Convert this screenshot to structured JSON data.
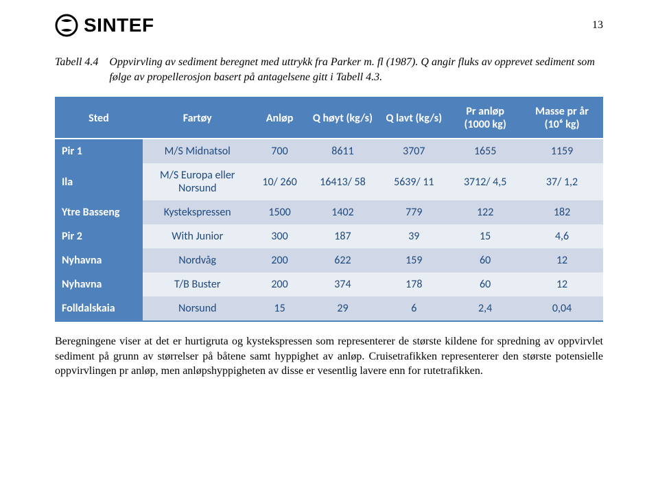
{
  "page": {
    "number": "13",
    "logo_text": "SINTEF"
  },
  "caption": {
    "label": "Tabell 4.4",
    "text": "Oppvirvling av sediment beregnet med uttrykk fra Parker m. fl (1987). Q angir fluks av opprevet sediment som følge av propellerosjon basert på antagelsene gitt i Tabell 4.3."
  },
  "table": {
    "columns": [
      {
        "key": "sted",
        "label": "Sted",
        "width": "16%"
      },
      {
        "key": "fartoy",
        "label": "Fartøy",
        "width": "20%"
      },
      {
        "key": "anlop",
        "label": "Anløp",
        "width": "10%"
      },
      {
        "key": "qhoyt",
        "label": "Q høyt (kg/s)",
        "width": "13%"
      },
      {
        "key": "qlavt",
        "label": "Q lavt (kg/s)",
        "width": "13%"
      },
      {
        "key": "pranlop",
        "label": "Pr anløp (1000 kg)",
        "width": "13%"
      },
      {
        "key": "masse",
        "label": "Masse pr år (10⁶ kg)",
        "width": "15%"
      }
    ],
    "rows": [
      {
        "sted": "Pir 1",
        "fartoy": "M/S Midnatsol",
        "anlop": "700",
        "qhoyt": "8611",
        "qlavt": "3707",
        "pranlop": "1655",
        "masse": "1159"
      },
      {
        "sted": "Ila",
        "fartoy": "M/S Europa eller Norsund",
        "anlop": "10/ 260",
        "qhoyt": "16413/ 58",
        "qlavt": "5639/ 11",
        "pranlop": "3712/ 4,5",
        "masse": "37/ 1,2"
      },
      {
        "sted": "Ytre Basseng",
        "fartoy": "Kystekspressen",
        "anlop": "1500",
        "qhoyt": "1402",
        "qlavt": "779",
        "pranlop": "122",
        "masse": "182"
      },
      {
        "sted": "Pir 2",
        "fartoy": "With Junior",
        "anlop": "300",
        "qhoyt": "187",
        "qlavt": "39",
        "pranlop": "15",
        "masse": "4,6"
      },
      {
        "sted": "Nyhavna",
        "fartoy": "Nordvåg",
        "anlop": "200",
        "qhoyt": "622",
        "qlavt": "159",
        "pranlop": "60",
        "masse": "12"
      },
      {
        "sted": "Nyhavna",
        "fartoy": "T/B Buster",
        "anlop": "200",
        "qhoyt": "374",
        "qlavt": "178",
        "pranlop": "60",
        "masse": "12"
      },
      {
        "sted": "Folldalskaia",
        "fartoy": "Norsund",
        "anlop": "15",
        "qhoyt": "29",
        "qlavt": "6",
        "pranlop": "2,4",
        "masse": "0,04"
      }
    ],
    "header_bg": "#4f81bd",
    "header_fg": "#ffffff",
    "band_a_bg": "#d0d8e8",
    "band_b_bg": "#e9edf4",
    "cell_fg": "#1f497d"
  },
  "paragraph": {
    "text": "Beregningene viser at det er hurtigruta og kystekspressen som representerer de største kildene for spredning av oppvirvlet sediment på grunn av størrelser på båtene samt hyppighet av anløp. Cruisetrafikken representerer den største potensielle oppvirvlingen pr anløp, men anløpshyppigheten av disse er vesentlig lavere enn for rutetrafikken."
  }
}
